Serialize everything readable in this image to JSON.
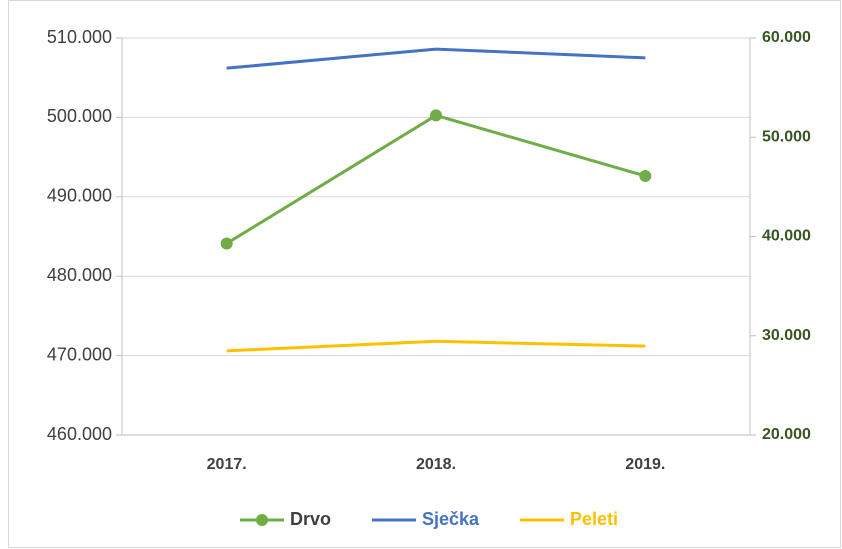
{
  "chart_data": {
    "type": "line",
    "categories": [
      "2017.",
      "2018.",
      "2019."
    ],
    "series": [
      {
        "name": "Drvo",
        "color": "#70ad47",
        "axis": "y2",
        "marker": true,
        "values": [
          39.3,
          52.2,
          46.1
        ]
      },
      {
        "name": "Sječka",
        "color": "#4472c4",
        "marker": false,
        "values": [
          506.2,
          508.6,
          507.5
        ]
      },
      {
        "name": "Peleti",
        "color": "#ffc000",
        "marker": false,
        "values": [
          470.6,
          471.8,
          471.2
        ]
      }
    ],
    "ylim": [
      460,
      510
    ],
    "yticks": [
      {
        "value": 460,
        "label": "460.000"
      },
      {
        "value": 470,
        "label": "470.000"
      },
      {
        "value": 480,
        "label": "480.000"
      },
      {
        "value": 490,
        "label": "490.000"
      },
      {
        "value": 500,
        "label": "500.000"
      },
      {
        "value": 510,
        "label": "510.000"
      }
    ],
    "y2lim": [
      20,
      60
    ],
    "y2ticks": [
      {
        "value": 20,
        "label": "20.000"
      },
      {
        "value": 30,
        "label": "30.000"
      },
      {
        "value": 40,
        "label": "40.000"
      },
      {
        "value": 50,
        "label": "50.000"
      },
      {
        "value": 60,
        "label": "60.000"
      }
    ],
    "y2color": "#375623",
    "grid": true,
    "legend": "bottom"
  }
}
